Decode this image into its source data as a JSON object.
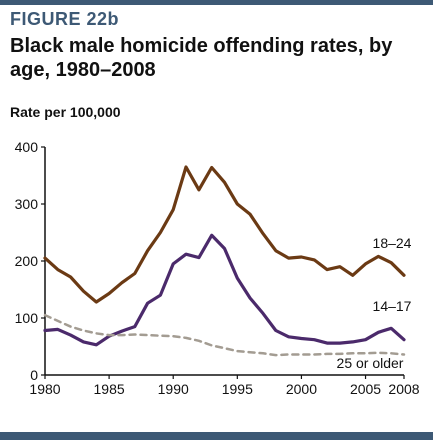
{
  "figure_label": "FIGURE 22b",
  "chart_data": {
    "type": "line",
    "title": "Black male homicide offending rates, by age, 1980–2008",
    "ylabel": "Rate per 100,000",
    "xlabel": "",
    "x": [
      1980,
      1981,
      1982,
      1983,
      1984,
      1985,
      1986,
      1987,
      1988,
      1989,
      1990,
      1991,
      1992,
      1993,
      1994,
      1995,
      1996,
      1997,
      1998,
      1999,
      2000,
      2001,
      2002,
      2003,
      2004,
      2005,
      2006,
      2007,
      2008
    ],
    "xlim": [
      1980,
      2008
    ],
    "ylim": [
      0,
      400
    ],
    "x_ticks": [
      "1980",
      "1985",
      "1990",
      "1995",
      "2000",
      "2005",
      "2008"
    ],
    "y_ticks": [
      "0",
      "100",
      "200",
      "300",
      "400"
    ],
    "grid": false,
    "series": [
      {
        "name": "18–24",
        "color": "#6b3a14",
        "dash": "solid",
        "values": [
          205,
          185,
          172,
          147,
          128,
          143,
          162,
          178,
          218,
          250,
          290,
          365,
          325,
          364,
          338,
          300,
          282,
          248,
          218,
          205,
          207,
          202,
          185,
          190,
          175,
          195,
          208,
          197,
          175
        ]
      },
      {
        "name": "14–17",
        "color": "#4b2a6b",
        "dash": "solid",
        "values": [
          78,
          80,
          70,
          58,
          53,
          68,
          77,
          85,
          126,
          140,
          195,
          212,
          206,
          245,
          222,
          170,
          135,
          108,
          78,
          67,
          64,
          62,
          56,
          56,
          58,
          62,
          75,
          82,
          62
        ]
      },
      {
        "name": "25 or older",
        "color": "#a39c92",
        "dash": "dashed",
        "values": [
          105,
          95,
          85,
          78,
          73,
          70,
          70,
          71,
          70,
          69,
          68,
          65,
          60,
          52,
          47,
          42,
          40,
          38,
          35,
          36,
          36,
          36,
          37,
          37,
          38,
          38,
          39,
          38,
          36
        ]
      }
    ]
  }
}
